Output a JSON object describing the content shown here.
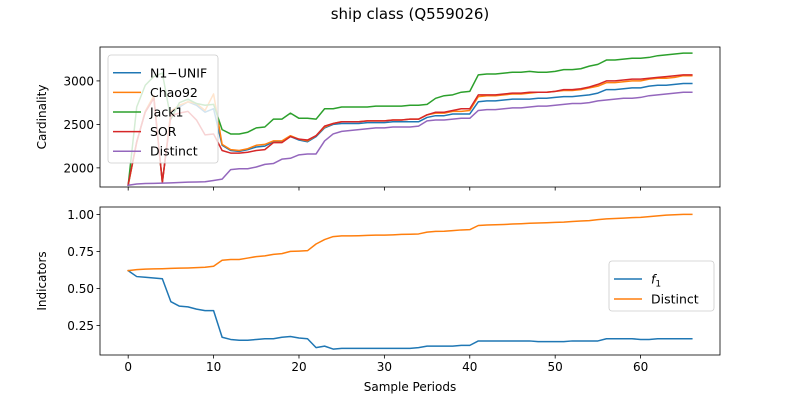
{
  "figure": {
    "title": "ship class (Q559026)"
  },
  "colors": {
    "tab_blue": "#1f77b4",
    "tab_orange": "#ff7f0e",
    "tab_green": "#2ca02c",
    "tab_red": "#d62728",
    "tab_purple": "#9467bd"
  },
  "chart_data": [
    {
      "type": "line",
      "ylabel": "Cardinality",
      "xlim": [
        -3.3,
        69.3
      ],
      "ylim": [
        1780,
        3390
      ],
      "yticks": [
        2000,
        2500,
        3000
      ],
      "xticks": [
        0,
        10,
        20,
        30,
        40,
        50,
        60
      ],
      "show_xtick_labels": false,
      "grid": false,
      "legend": "top-left",
      "series": [
        {
          "name": "N1−UNIF",
          "color": "tab_blue",
          "values": [
            1800,
            2300,
            2650,
            2820,
            1830,
            2640,
            2700,
            2760,
            2720,
            2640,
            2680,
            2260,
            2200,
            2190,
            2210,
            2240,
            2250,
            2300,
            2300,
            2360,
            2320,
            2300,
            2360,
            2460,
            2500,
            2510,
            2510,
            2510,
            2520,
            2520,
            2520,
            2530,
            2530,
            2530,
            2530,
            2580,
            2600,
            2600,
            2620,
            2620,
            2620,
            2760,
            2770,
            2770,
            2780,
            2790,
            2790,
            2790,
            2800,
            2800,
            2810,
            2820,
            2820,
            2830,
            2840,
            2860,
            2900,
            2900,
            2910,
            2920,
            2920,
            2940,
            2950,
            2950,
            2960,
            2970,
            2970
          ]
        },
        {
          "name": "Chao92",
          "color": "tab_orange",
          "values": [
            1800,
            2290,
            2650,
            2830,
            1830,
            2650,
            2720,
            2760,
            2740,
            2660,
            2850,
            2270,
            2210,
            2200,
            2220,
            2260,
            2270,
            2310,
            2310,
            2370,
            2330,
            2310,
            2370,
            2470,
            2510,
            2530,
            2530,
            2530,
            2540,
            2540,
            2540,
            2550,
            2550,
            2560,
            2560,
            2610,
            2630,
            2630,
            2650,
            2650,
            2660,
            2820,
            2830,
            2830,
            2840,
            2850,
            2850,
            2860,
            2870,
            2870,
            2880,
            2890,
            2890,
            2900,
            2920,
            2940,
            2980,
            2980,
            2990,
            3000,
            3000,
            3020,
            3030,
            3030,
            3040,
            3060,
            3060
          ]
        },
        {
          "name": "Jack1",
          "color": "tab_green",
          "values": [
            1800,
            2700,
            2950,
            3050,
            3090,
            2560,
            2750,
            2790,
            2740,
            2720,
            2730,
            2440,
            2390,
            2390,
            2410,
            2460,
            2470,
            2560,
            2560,
            2630,
            2570,
            2570,
            2560,
            2680,
            2680,
            2700,
            2700,
            2700,
            2700,
            2710,
            2710,
            2710,
            2710,
            2720,
            2720,
            2730,
            2800,
            2830,
            2840,
            2870,
            2880,
            3070,
            3080,
            3080,
            3090,
            3100,
            3100,
            3110,
            3100,
            3100,
            3110,
            3130,
            3130,
            3140,
            3170,
            3190,
            3240,
            3240,
            3250,
            3260,
            3260,
            3270,
            3290,
            3300,
            3310,
            3320,
            3320
          ]
        },
        {
          "name": "SOR",
          "color": "tab_red",
          "values": [
            1810,
            2300,
            2640,
            2800,
            1840,
            2600,
            2630,
            2650,
            2550,
            2380,
            2390,
            2200,
            2170,
            2170,
            2180,
            2200,
            2210,
            2290,
            2290,
            2360,
            2330,
            2320,
            2370,
            2480,
            2510,
            2530,
            2530,
            2530,
            2540,
            2540,
            2540,
            2550,
            2550,
            2560,
            2560,
            2610,
            2640,
            2640,
            2660,
            2680,
            2680,
            2840,
            2840,
            2840,
            2850,
            2860,
            2860,
            2870,
            2870,
            2870,
            2880,
            2900,
            2900,
            2910,
            2930,
            2960,
            3000,
            3000,
            3010,
            3020,
            3020,
            3030,
            3040,
            3050,
            3060,
            3070,
            3070
          ]
        },
        {
          "name": "Distinct",
          "color": "tab_purple",
          "values": [
            1800,
            1815,
            1820,
            1822,
            1825,
            1828,
            1832,
            1836,
            1838,
            1840,
            1855,
            1870,
            1980,
            1990,
            1990,
            2010,
            2040,
            2050,
            2100,
            2110,
            2150,
            2160,
            2160,
            2310,
            2390,
            2420,
            2430,
            2440,
            2450,
            2460,
            2460,
            2470,
            2470,
            2470,
            2480,
            2540,
            2550,
            2550,
            2560,
            2570,
            2570,
            2660,
            2670,
            2670,
            2680,
            2690,
            2690,
            2700,
            2710,
            2710,
            2720,
            2730,
            2740,
            2740,
            2750,
            2770,
            2780,
            2790,
            2800,
            2800,
            2810,
            2830,
            2840,
            2850,
            2860,
            2870,
            2870
          ]
        }
      ]
    },
    {
      "type": "line",
      "xlabel": "Sample Periods",
      "ylabel": "Indicators",
      "xlim": [
        -3.3,
        69.3
      ],
      "ylim": [
        0.05,
        1.05
      ],
      "yticks": [
        "0.25",
        "0.50",
        "0.75",
        "1.00"
      ],
      "xticks": [
        0,
        10,
        20,
        30,
        40,
        50,
        60
      ],
      "grid": false,
      "legend": "center-right",
      "series": [
        {
          "name": "f",
          "name_sub": "1",
          "color": "tab_blue",
          "values": [
            0.62,
            0.58,
            0.575,
            0.57,
            0.565,
            0.41,
            0.38,
            0.375,
            0.36,
            0.35,
            0.35,
            0.17,
            0.155,
            0.15,
            0.15,
            0.155,
            0.16,
            0.16,
            0.17,
            0.175,
            0.165,
            0.16,
            0.1,
            0.11,
            0.09,
            0.095,
            0.095,
            0.095,
            0.095,
            0.095,
            0.095,
            0.095,
            0.095,
            0.095,
            0.1,
            0.11,
            0.11,
            0.11,
            0.11,
            0.115,
            0.115,
            0.145,
            0.145,
            0.145,
            0.145,
            0.145,
            0.145,
            0.145,
            0.14,
            0.14,
            0.14,
            0.14,
            0.145,
            0.145,
            0.145,
            0.145,
            0.16,
            0.16,
            0.16,
            0.16,
            0.155,
            0.155,
            0.16,
            0.16,
            0.16,
            0.16,
            0.16
          ]
        },
        {
          "name": "Distinct",
          "color": "tab_orange",
          "values": [
            0.62,
            0.627,
            0.63,
            0.632,
            0.633,
            0.635,
            0.637,
            0.638,
            0.64,
            0.643,
            0.65,
            0.69,
            0.695,
            0.695,
            0.705,
            0.715,
            0.72,
            0.73,
            0.735,
            0.75,
            0.752,
            0.755,
            0.8,
            0.83,
            0.85,
            0.855,
            0.855,
            0.856,
            0.858,
            0.86,
            0.86,
            0.862,
            0.865,
            0.866,
            0.868,
            0.88,
            0.885,
            0.886,
            0.89,
            0.895,
            0.897,
            0.925,
            0.928,
            0.93,
            0.932,
            0.935,
            0.937,
            0.94,
            0.942,
            0.944,
            0.946,
            0.948,
            0.952,
            0.955,
            0.958,
            0.965,
            0.97,
            0.972,
            0.975,
            0.978,
            0.98,
            0.985,
            0.99,
            0.995,
            0.998,
            1.0,
            1.0
          ]
        }
      ]
    }
  ]
}
